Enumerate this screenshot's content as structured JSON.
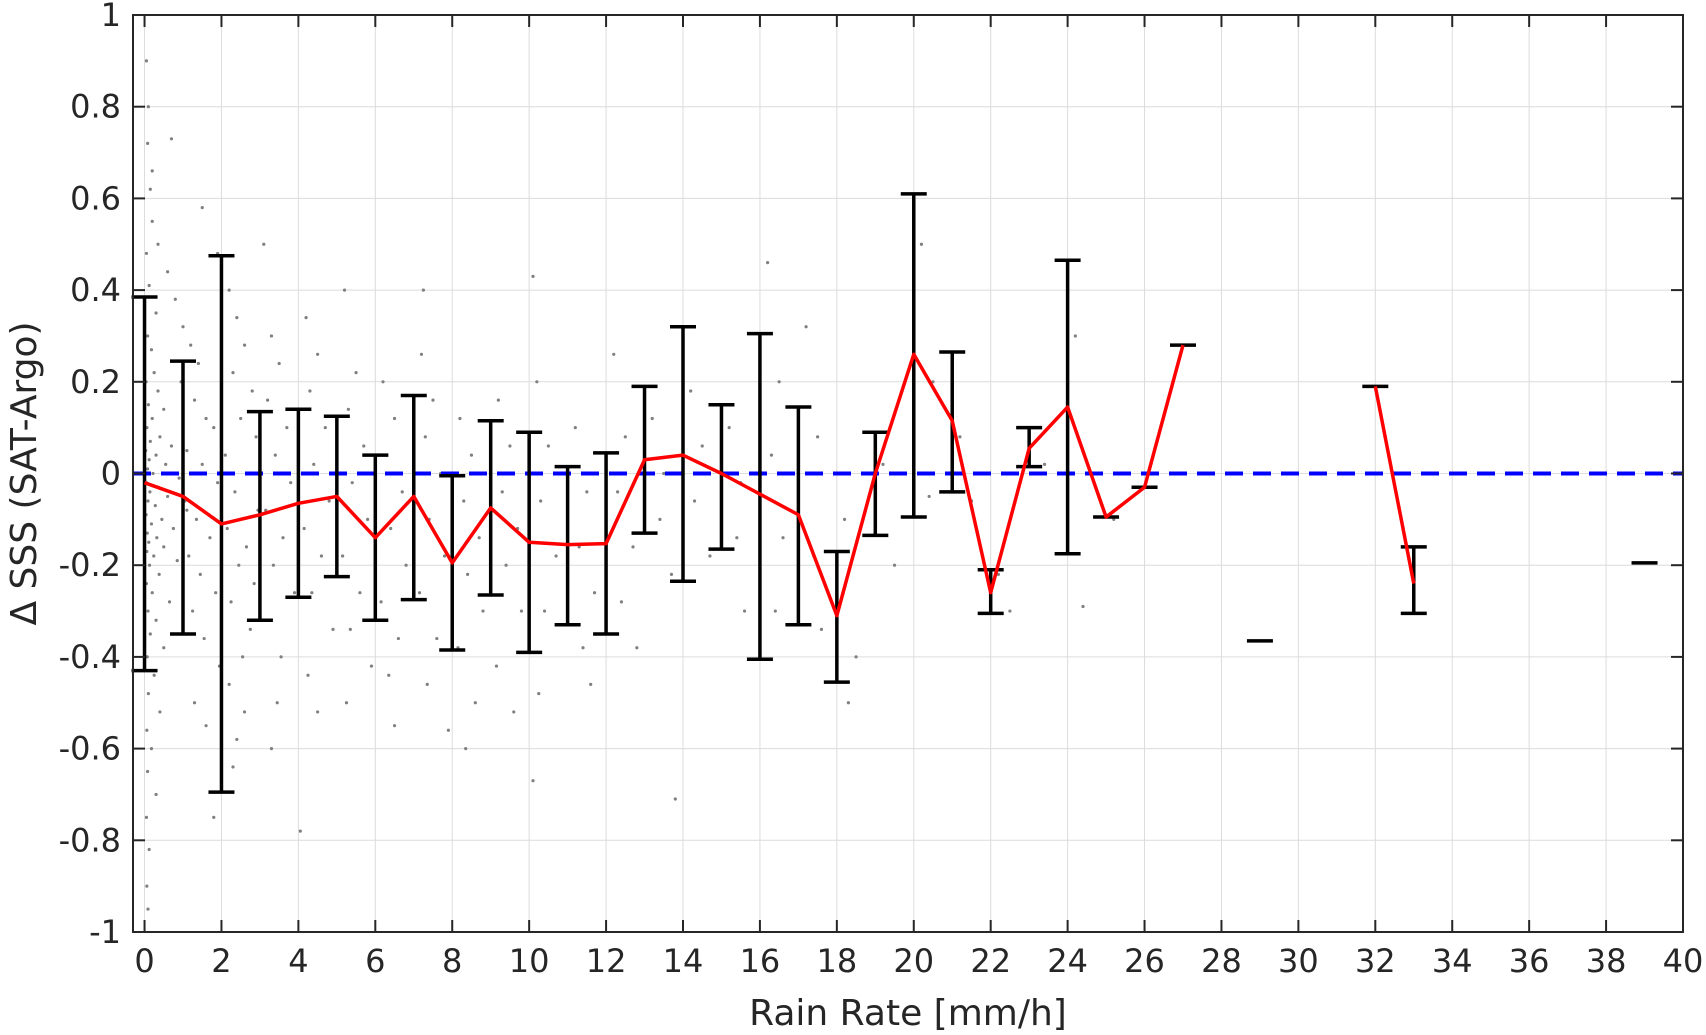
{
  "chart_data": {
    "type": "line",
    "title": "",
    "xlabel": "Rain Rate [mm/h]",
    "ylabel": "Δ SSS (SAT-Argo)",
    "xlim": [
      -0.3,
      40
    ],
    "ylim": [
      -1,
      1
    ],
    "x_ticks": [
      0,
      2,
      4,
      6,
      8,
      10,
      12,
      14,
      16,
      18,
      20,
      22,
      24,
      26,
      28,
      30,
      32,
      34,
      36,
      38,
      40
    ],
    "x_tick_labels": [
      "0",
      "2",
      "4",
      "6",
      "8",
      "10",
      "12",
      "14",
      "16",
      "18",
      "20",
      "22",
      "24",
      "26",
      "28",
      "30",
      "32",
      "34",
      "36",
      "38",
      "40"
    ],
    "y_ticks": [
      1,
      0.8,
      0.6,
      0.4,
      0.2,
      0,
      -0.2,
      -0.4,
      -0.6,
      -0.8,
      -1
    ],
    "y_tick_labels": [
      "1",
      "0.8",
      "0.6",
      "0.4",
      "0.2",
      "0",
      "-0.2",
      "-0.4",
      "-0.6",
      "-0.8",
      "-1"
    ],
    "grid": true,
    "colors": {
      "mean_line": "#ff0000",
      "error_bars": "#000000",
      "zero_line": "#0000ff",
      "scatter": "#808080",
      "grid": "#dcdcdc",
      "axes": "#262626"
    },
    "reference_line": {
      "y": 0,
      "style": "dashed"
    },
    "mean_segments": [
      [
        [
          0,
          -0.02
        ],
        [
          1,
          -0.05
        ],
        [
          2,
          -0.11
        ],
        [
          3,
          -0.09
        ],
        [
          4,
          -0.065
        ],
        [
          5,
          -0.05
        ],
        [
          6,
          -0.14
        ],
        [
          7,
          -0.05
        ],
        [
          8,
          -0.195
        ],
        [
          9,
          -0.075
        ],
        [
          10,
          -0.15
        ],
        [
          11,
          -0.155
        ],
        [
          12,
          -0.153
        ],
        [
          13,
          0.03
        ],
        [
          14,
          0.04
        ],
        [
          15,
          0.0
        ],
        [
          16,
          -0.045
        ],
        [
          17,
          -0.09
        ],
        [
          18,
          -0.31
        ],
        [
          19,
          0.0
        ],
        [
          20,
          0.26
        ],
        [
          21,
          0.115
        ],
        [
          22,
          -0.26
        ],
        [
          23,
          0.055
        ],
        [
          24,
          0.145
        ],
        [
          25,
          -0.095
        ],
        [
          26,
          -0.03
        ],
        [
          27,
          0.28
        ]
      ],
      [
        [
          32,
          0.19
        ],
        [
          33,
          -0.24
        ]
      ]
    ],
    "error_bars": [
      {
        "x": 0,
        "low": -0.43,
        "high": 0.385
      },
      {
        "x": 1,
        "low": -0.35,
        "high": 0.245
      },
      {
        "x": 2,
        "low": -0.695,
        "high": 0.475
      },
      {
        "x": 3,
        "low": -0.32,
        "high": 0.135
      },
      {
        "x": 4,
        "low": -0.27,
        "high": 0.14
      },
      {
        "x": 5,
        "low": -0.225,
        "high": 0.125
      },
      {
        "x": 6,
        "low": -0.32,
        "high": 0.04
      },
      {
        "x": 7,
        "low": -0.275,
        "high": 0.17
      },
      {
        "x": 8,
        "low": -0.385,
        "high": -0.005
      },
      {
        "x": 9,
        "low": -0.265,
        "high": 0.115
      },
      {
        "x": 10,
        "low": -0.39,
        "high": 0.09
      },
      {
        "x": 11,
        "low": -0.33,
        "high": 0.015
      },
      {
        "x": 12,
        "low": -0.35,
        "high": 0.045
      },
      {
        "x": 13,
        "low": -0.13,
        "high": 0.19
      },
      {
        "x": 14,
        "low": -0.235,
        "high": 0.32
      },
      {
        "x": 15,
        "low": -0.165,
        "high": 0.15
      },
      {
        "x": 16,
        "low": -0.405,
        "high": 0.305
      },
      {
        "x": 17,
        "low": -0.33,
        "high": 0.145
      },
      {
        "x": 18,
        "low": -0.455,
        "high": -0.17
      },
      {
        "x": 19,
        "low": -0.135,
        "high": 0.09
      },
      {
        "x": 20,
        "low": -0.095,
        "high": 0.61
      },
      {
        "x": 21,
        "low": -0.04,
        "high": 0.265
      },
      {
        "x": 22,
        "low": -0.305,
        "high": -0.21
      },
      {
        "x": 23,
        "low": 0.015,
        "high": 0.1
      },
      {
        "x": 24,
        "low": -0.175,
        "high": 0.465
      },
      {
        "x": 25,
        "low": -0.095,
        "high": -0.095
      },
      {
        "x": 26,
        "low": -0.03,
        "high": -0.03
      },
      {
        "x": 27,
        "low": 0.28,
        "high": 0.28
      },
      {
        "x": 29,
        "low": -0.365,
        "high": -0.365
      },
      {
        "x": 32,
        "low": 0.19,
        "high": 0.19
      },
      {
        "x": 33,
        "low": -0.305,
        "high": -0.16
      },
      {
        "x": 39,
        "low": -0.195,
        "high": -0.195
      }
    ],
    "scatter_points": [
      [
        0.05,
        0.9
      ],
      [
        0.1,
        0.8
      ],
      [
        0.08,
        0.72
      ],
      [
        0.15,
        0.62
      ],
      [
        0.2,
        0.55
      ],
      [
        0.05,
        0.48
      ],
      [
        0.12,
        0.41
      ],
      [
        0.3,
        0.35
      ],
      [
        0.08,
        0.3
      ],
      [
        0.18,
        0.27
      ],
      [
        0.25,
        0.22
      ],
      [
        0.04,
        0.2
      ],
      [
        0.35,
        0.18
      ],
      [
        0.1,
        0.15
      ],
      [
        0.5,
        0.14
      ],
      [
        0.2,
        0.12
      ],
      [
        0.06,
        0.1
      ],
      [
        0.4,
        0.08
      ],
      [
        0.15,
        0.07
      ],
      [
        0.7,
        0.06
      ],
      [
        0.03,
        0.05
      ],
      [
        0.3,
        0.04
      ],
      [
        0.12,
        0.03
      ],
      [
        0.55,
        0.02
      ],
      [
        0.08,
        0.01
      ],
      [
        0.22,
        0.0
      ],
      [
        0.9,
        -0.01
      ],
      [
        0.05,
        -0.02
      ],
      [
        0.35,
        -0.03
      ],
      [
        0.14,
        -0.04
      ],
      [
        0.6,
        -0.05
      ],
      [
        0.09,
        -0.06
      ],
      [
        0.28,
        -0.07
      ],
      [
        1.1,
        -0.08
      ],
      [
        0.04,
        -0.09
      ],
      [
        0.45,
        -0.1
      ],
      [
        0.18,
        -0.11
      ],
      [
        0.75,
        -0.12
      ],
      [
        0.07,
        -0.13
      ],
      [
        0.32,
        -0.14
      ],
      [
        0.11,
        -0.15
      ],
      [
        0.5,
        -0.16
      ],
      [
        0.06,
        -0.17
      ],
      [
        0.24,
        -0.18
      ],
      [
        0.85,
        -0.19
      ],
      [
        0.13,
        -0.2
      ],
      [
        0.38,
        -0.22
      ],
      [
        0.05,
        -0.24
      ],
      [
        0.2,
        -0.26
      ],
      [
        0.65,
        -0.28
      ],
      [
        0.09,
        -0.3
      ],
      [
        0.3,
        -0.32
      ],
      [
        0.15,
        -0.35
      ],
      [
        0.5,
        -0.38
      ],
      [
        0.07,
        -0.4
      ],
      [
        0.25,
        -0.44
      ],
      [
        0.1,
        -0.48
      ],
      [
        0.4,
        -0.52
      ],
      [
        0.06,
        -0.56
      ],
      [
        0.18,
        -0.6
      ],
      [
        0.08,
        -0.65
      ],
      [
        0.3,
        -0.7
      ],
      [
        0.05,
        -0.75
      ],
      [
        0.12,
        -0.82
      ],
      [
        0.06,
        -0.9
      ],
      [
        0.09,
        -0.95
      ],
      [
        0.2,
        0.66
      ],
      [
        0.35,
        0.5
      ],
      [
        0.6,
        0.44
      ],
      [
        0.8,
        0.38
      ],
      [
        1.0,
        0.32
      ],
      [
        1.2,
        0.28
      ],
      [
        1.4,
        0.24
      ],
      [
        0.95,
        0.2
      ],
      [
        1.3,
        0.16
      ],
      [
        1.6,
        0.12
      ],
      [
        1.8,
        0.1
      ],
      [
        1.1,
        0.05
      ],
      [
        1.5,
        0.02
      ],
      [
        1.9,
        -0.02
      ],
      [
        1.05,
        -0.06
      ],
      [
        1.35,
        -0.1
      ],
      [
        1.7,
        -0.14
      ],
      [
        1.15,
        -0.18
      ],
      [
        1.45,
        -0.22
      ],
      [
        1.85,
        -0.26
      ],
      [
        1.25,
        -0.3
      ],
      [
        1.55,
        -0.36
      ],
      [
        1.95,
        -0.42
      ],
      [
        1.3,
        -0.5
      ],
      [
        1.6,
        -0.55
      ],
      [
        1.8,
        -0.75
      ],
      [
        0.7,
        0.73
      ],
      [
        1.5,
        0.58
      ],
      [
        1.9,
        0.48
      ],
      [
        2.2,
        0.4
      ],
      [
        2.4,
        0.34
      ],
      [
        2.6,
        0.28
      ],
      [
        2.3,
        0.22
      ],
      [
        2.8,
        0.18
      ],
      [
        2.5,
        0.12
      ],
      [
        2.9,
        0.08
      ],
      [
        2.1,
        0.04
      ],
      [
        2.7,
        0.0
      ],
      [
        2.35,
        -0.04
      ],
      [
        2.95,
        -0.08
      ],
      [
        2.15,
        -0.12
      ],
      [
        2.65,
        -0.16
      ],
      [
        2.45,
        -0.2
      ],
      [
        2.85,
        -0.24
      ],
      [
        2.25,
        -0.28
      ],
      [
        2.75,
        -0.34
      ],
      [
        2.55,
        -0.4
      ],
      [
        2.2,
        -0.46
      ],
      [
        2.6,
        -0.52
      ],
      [
        2.4,
        -0.58
      ],
      [
        2.3,
        -0.64
      ],
      [
        3.1,
        0.5
      ],
      [
        3.3,
        0.3
      ],
      [
        3.5,
        0.24
      ],
      [
        3.2,
        0.16
      ],
      [
        3.7,
        0.1
      ],
      [
        3.4,
        0.04
      ],
      [
        3.8,
        -0.02
      ],
      [
        3.15,
        -0.08
      ],
      [
        3.6,
        -0.14
      ],
      [
        3.35,
        -0.2
      ],
      [
        3.9,
        -0.26
      ],
      [
        3.25,
        -0.32
      ],
      [
        3.55,
        -0.4
      ],
      [
        3.45,
        -0.5
      ],
      [
        3.3,
        -0.6
      ],
      [
        4.2,
        0.34
      ],
      [
        4.5,
        0.26
      ],
      [
        4.3,
        0.18
      ],
      [
        4.7,
        0.1
      ],
      [
        4.4,
        0.02
      ],
      [
        4.8,
        -0.06
      ],
      [
        4.15,
        -0.12
      ],
      [
        4.6,
        -0.18
      ],
      [
        4.35,
        -0.26
      ],
      [
        4.9,
        -0.34
      ],
      [
        4.25,
        -0.44
      ],
      [
        4.5,
        -0.52
      ],
      [
        4.05,
        -0.78
      ],
      [
        5.2,
        0.4
      ],
      [
        5.5,
        0.22
      ],
      [
        5.3,
        0.14
      ],
      [
        5.7,
        0.06
      ],
      [
        5.4,
        -0.02
      ],
      [
        5.8,
        -0.1
      ],
      [
        5.15,
        -0.18
      ],
      [
        5.6,
        -0.26
      ],
      [
        5.35,
        -0.34
      ],
      [
        5.9,
        -0.42
      ],
      [
        5.25,
        -0.5
      ],
      [
        6.2,
        0.2
      ],
      [
        6.5,
        0.12
      ],
      [
        6.3,
        0.04
      ],
      [
        6.7,
        -0.04
      ],
      [
        6.4,
        -0.12
      ],
      [
        6.8,
        -0.2
      ],
      [
        6.15,
        -0.28
      ],
      [
        6.6,
        -0.36
      ],
      [
        6.35,
        -0.44
      ],
      [
        6.5,
        -0.55
      ],
      [
        7.2,
        0.26
      ],
      [
        7.5,
        0.16
      ],
      [
        7.3,
        0.08
      ],
      [
        7.7,
        0.0
      ],
      [
        7.4,
        -0.1
      ],
      [
        7.8,
        -0.18
      ],
      [
        7.15,
        -0.26
      ],
      [
        7.6,
        -0.36
      ],
      [
        7.35,
        -0.46
      ],
      [
        7.9,
        -0.56
      ],
      [
        7.25,
        0.4
      ],
      [
        8.2,
        0.12
      ],
      [
        8.5,
        0.04
      ],
      [
        8.3,
        -0.06
      ],
      [
        8.7,
        -0.14
      ],
      [
        8.4,
        -0.22
      ],
      [
        8.8,
        -0.3
      ],
      [
        8.15,
        -0.38
      ],
      [
        8.6,
        -0.5
      ],
      [
        8.35,
        -0.6
      ],
      [
        9.2,
        0.16
      ],
      [
        9.5,
        0.06
      ],
      [
        9.3,
        -0.04
      ],
      [
        9.7,
        -0.12
      ],
      [
        9.4,
        -0.2
      ],
      [
        9.8,
        -0.3
      ],
      [
        9.15,
        -0.42
      ],
      [
        9.6,
        -0.52
      ],
      [
        10.1,
        0.43
      ],
      [
        10.2,
        0.2
      ],
      [
        10.5,
        0.06
      ],
      [
        10.3,
        -0.06
      ],
      [
        10.7,
        -0.18
      ],
      [
        10.4,
        -0.3
      ],
      [
        10.25,
        -0.48
      ],
      [
        10.1,
        -0.67
      ],
      [
        11.2,
        0.1
      ],
      [
        11.5,
        -0.04
      ],
      [
        11.3,
        -0.16
      ],
      [
        11.7,
        -0.26
      ],
      [
        11.4,
        -0.38
      ],
      [
        11.6,
        -0.46
      ],
      [
        12.2,
        0.26
      ],
      [
        12.5,
        0.08
      ],
      [
        12.3,
        -0.04
      ],
      [
        12.7,
        -0.16
      ],
      [
        12.4,
        -0.28
      ],
      [
        12.8,
        -0.38
      ],
      [
        13.2,
        0.12
      ],
      [
        13.5,
        0.0
      ],
      [
        13.4,
        -0.1
      ],
      [
        13.7,
        -0.22
      ],
      [
        14.2,
        0.18
      ],
      [
        14.5,
        0.06
      ],
      [
        14.3,
        -0.06
      ],
      [
        14.7,
        -0.18
      ],
      [
        13.8,
        -0.71
      ],
      [
        15.2,
        0.1
      ],
      [
        15.5,
        -0.02
      ],
      [
        15.4,
        -0.14
      ],
      [
        15.6,
        -0.3
      ],
      [
        16.2,
        0.46
      ],
      [
        16.5,
        0.2
      ],
      [
        16.3,
        0.04
      ],
      [
        16.6,
        -0.14
      ],
      [
        16.4,
        -0.3
      ],
      [
        17.2,
        0.32
      ],
      [
        17.5,
        0.08
      ],
      [
        17.4,
        -0.18
      ],
      [
        17.6,
        -0.34
      ],
      [
        18.2,
        -0.1
      ],
      [
        18.5,
        -0.4
      ],
      [
        18.3,
        -0.5
      ],
      [
        19.2,
        0.02
      ],
      [
        19.5,
        -0.2
      ],
      [
        20.2,
        0.5
      ],
      [
        20.5,
        0.2
      ],
      [
        20.4,
        -0.05
      ],
      [
        21.2,
        0.08
      ],
      [
        21.5,
        -0.06
      ],
      [
        22.2,
        -0.22
      ],
      [
        22.5,
        -0.3
      ],
      [
        23.2,
        0.1
      ],
      [
        23.4,
        0.02
      ],
      [
        24.2,
        0.3
      ],
      [
        24.5,
        0.0
      ],
      [
        24.4,
        -0.29
      ],
      [
        25.2,
        -0.1
      ],
      [
        26.2,
        -0.03
      ],
      [
        27.2,
        0.28
      ]
    ]
  }
}
